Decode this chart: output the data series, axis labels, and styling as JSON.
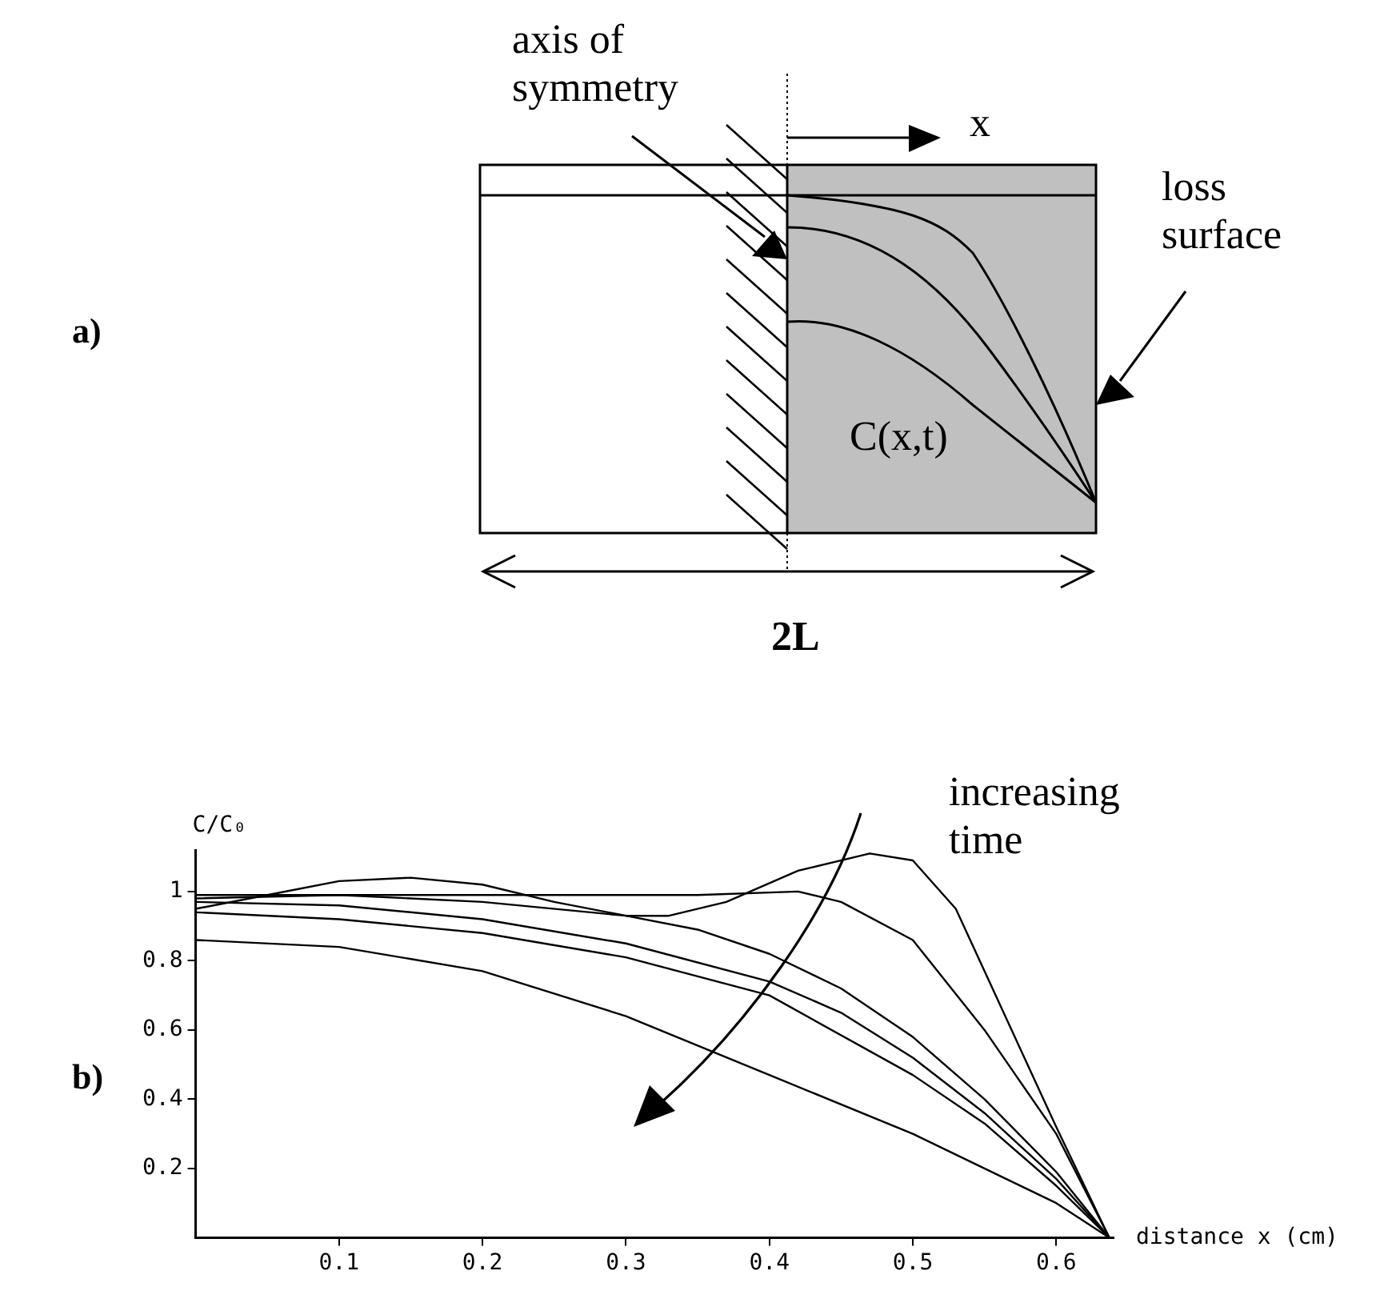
{
  "chart_data": {
    "type": "line",
    "xlabel": "distance x (cm)",
    "ylabel": "C/C₀",
    "annotations": [
      "axis of symmetry",
      "x",
      "loss surface",
      "C(x,t)",
      "2L",
      "a)",
      "b)",
      "increasing time"
    ],
    "xlim": [
      0,
      0.64
    ],
    "ylim": [
      0,
      1.12
    ],
    "xticks": [
      0.1,
      0.2,
      0.3,
      0.4,
      0.5,
      0.6
    ],
    "yticks": [
      0.2,
      0.4,
      0.6,
      0.8,
      1
    ],
    "grid": false,
    "legend": false,
    "marker": "none",
    "line_style": "solid",
    "series": [
      {
        "color": "#000000",
        "x": [
          0,
          0.05,
          0.1,
          0.15,
          0.2,
          0.25,
          0.3,
          0.33,
          0.37,
          0.42,
          0.47,
          0.5,
          0.53,
          0.56,
          0.6,
          0.637
        ],
        "values": [
          0.95,
          0.99,
          1.03,
          1.04,
          1.02,
          0.97,
          0.93,
          0.93,
          0.97,
          1.06,
          1.11,
          1.09,
          0.95,
          0.68,
          0.32,
          0
        ]
      },
      {
        "color": "#000000",
        "x": [
          0,
          0.1,
          0.2,
          0.3,
          0.35,
          0.42,
          0.45,
          0.5,
          0.55,
          0.6,
          0.637
        ],
        "values": [
          0.99,
          0.99,
          0.99,
          0.99,
          0.99,
          1.0,
          0.97,
          0.86,
          0.6,
          0.3,
          0
        ]
      },
      {
        "color": "#000000",
        "x": [
          0,
          0.1,
          0.2,
          0.3,
          0.35,
          0.4,
          0.45,
          0.5,
          0.55,
          0.6,
          0.637
        ],
        "values": [
          0.98,
          0.99,
          0.97,
          0.93,
          0.89,
          0.82,
          0.72,
          0.58,
          0.4,
          0.19,
          0
        ]
      },
      {
        "color": "#000000",
        "x": [
          0,
          0.1,
          0.2,
          0.3,
          0.4,
          0.45,
          0.5,
          0.55,
          0.6,
          0.637
        ],
        "values": [
          0.97,
          0.96,
          0.92,
          0.85,
          0.74,
          0.65,
          0.52,
          0.36,
          0.17,
          0
        ]
      },
      {
        "color": "#000000",
        "x": [
          0,
          0.1,
          0.2,
          0.3,
          0.4,
          0.5,
          0.55,
          0.6,
          0.637
        ],
        "values": [
          0.94,
          0.92,
          0.88,
          0.81,
          0.7,
          0.47,
          0.33,
          0.15,
          0
        ]
      },
      {
        "color": "#000000",
        "x": [
          0,
          0.1,
          0.2,
          0.3,
          0.4,
          0.5,
          0.6,
          0.637
        ],
        "values": [
          0.86,
          0.84,
          0.77,
          0.64,
          0.47,
          0.3,
          0.1,
          0
        ]
      }
    ]
  }
}
